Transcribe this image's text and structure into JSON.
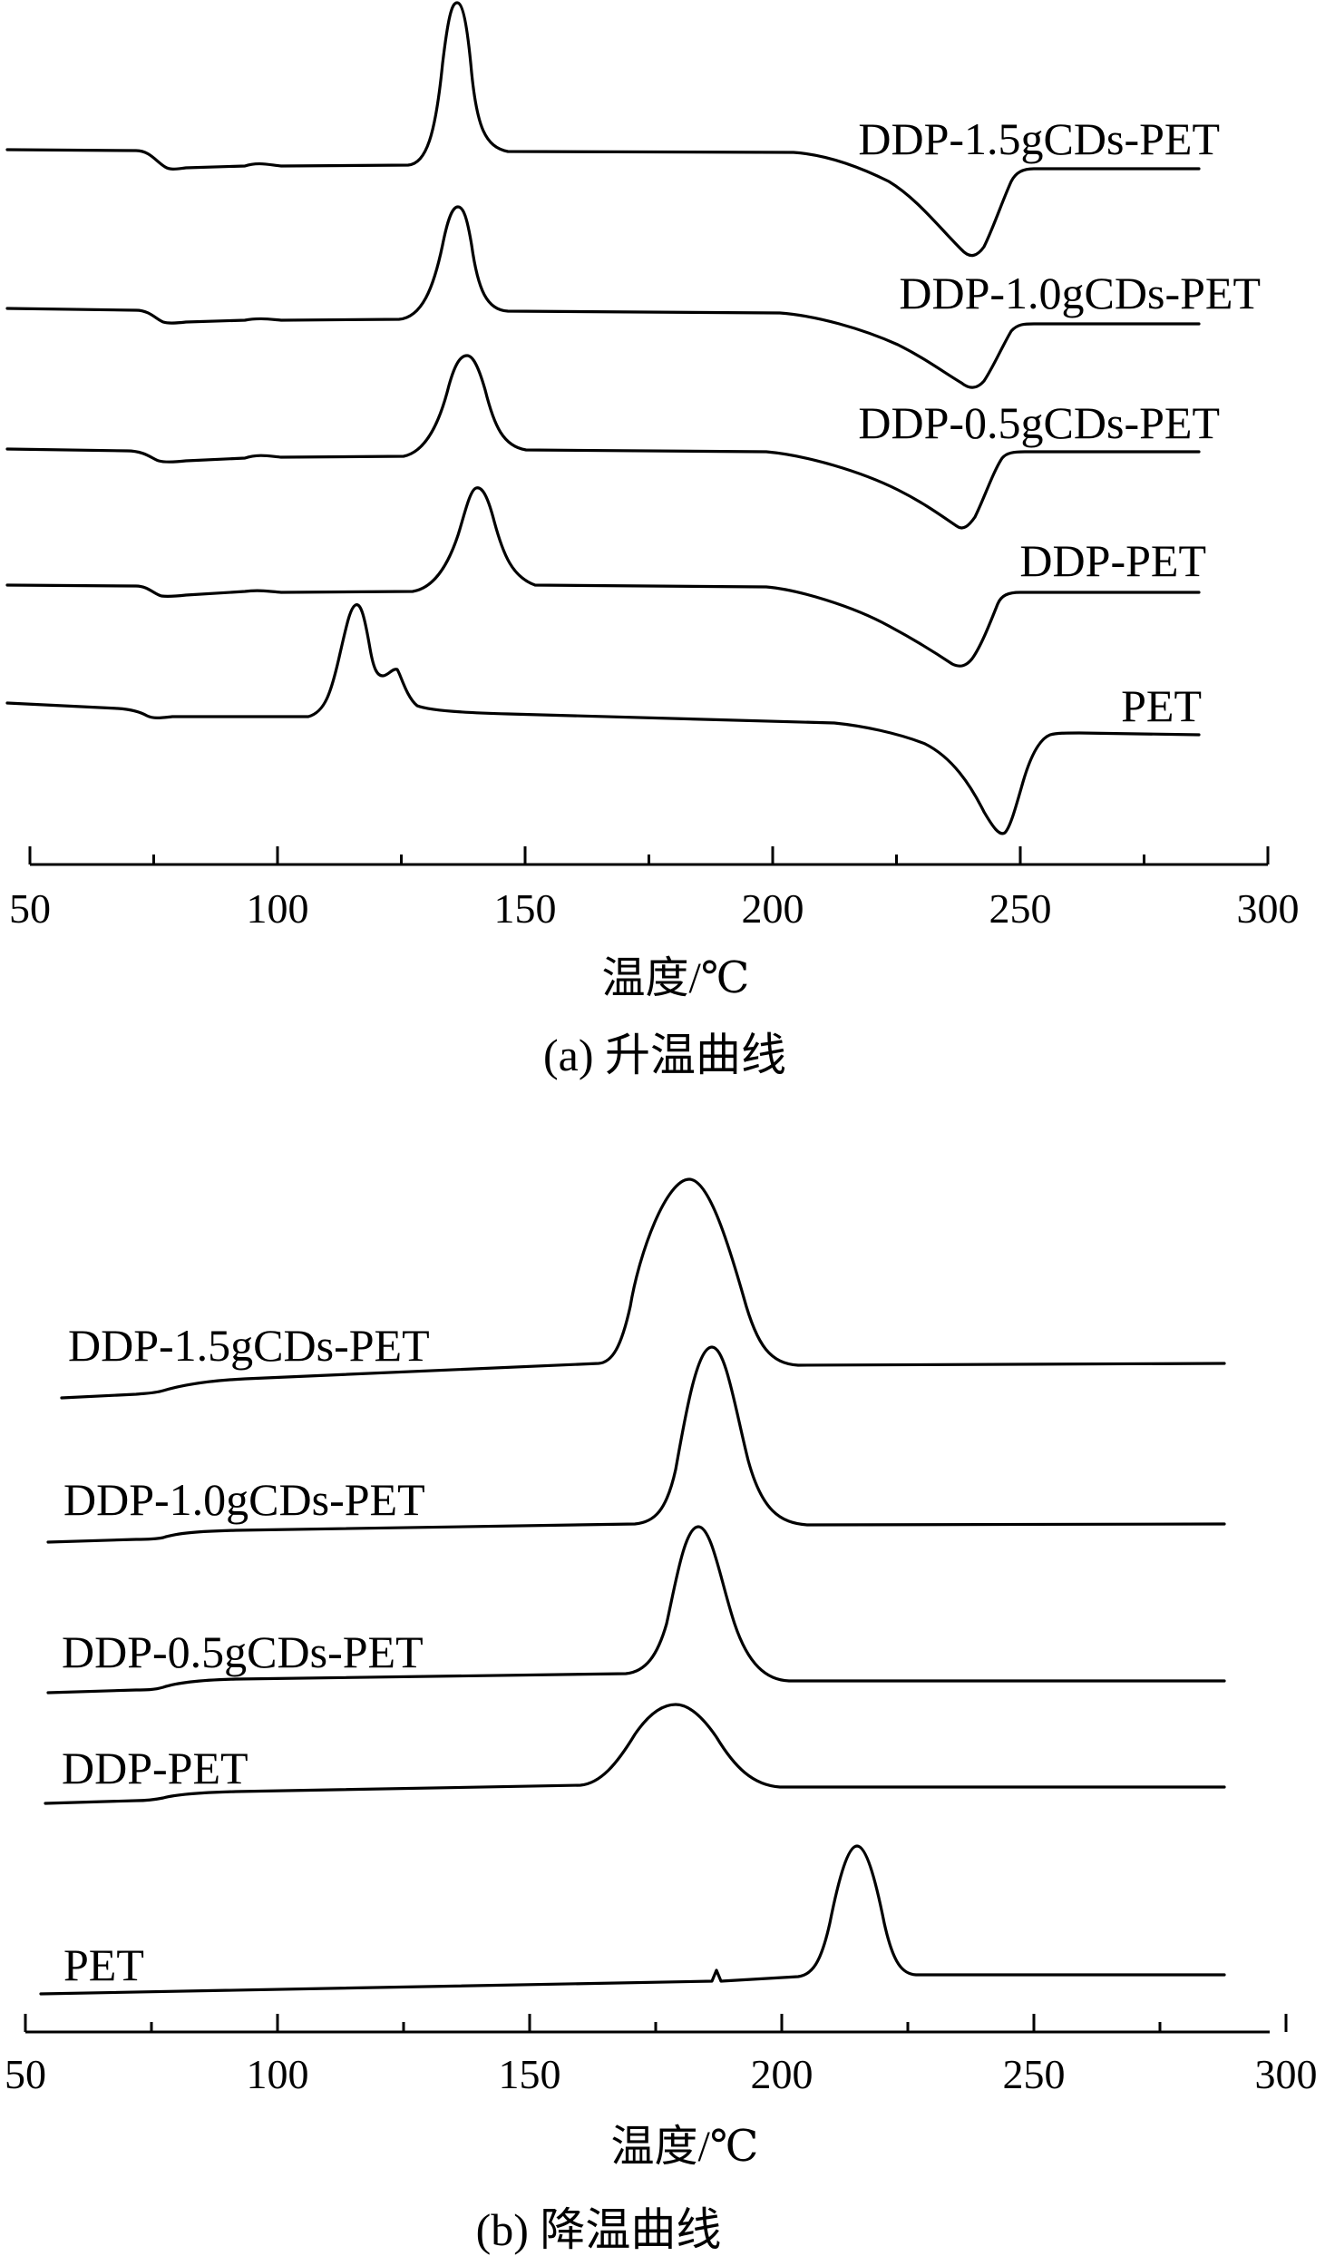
{
  "chart_data": [
    {
      "type": "line",
      "caption": "(a) 升温曲线",
      "xlabel": "温度/℃",
      "ylabel": "",
      "xlim": [
        50,
        300
      ],
      "xticks": [
        50,
        100,
        150,
        200,
        250,
        300
      ],
      "grid": false,
      "series": [
        {
          "name": "DDP-1.5gCDs-PET",
          "transitions": {
            "glass_transition": 75,
            "cold_crystallization_peak": 134,
            "melting_peak": 239
          }
        },
        {
          "name": "DDP-1.0gCDs-PET",
          "transitions": {
            "glass_transition": 75,
            "cold_crystallization_peak": 135,
            "melting_peak": 239
          }
        },
        {
          "name": "DDP-0.5gCDs-PET",
          "transitions": {
            "glass_transition": 75,
            "cold_crystallization_peak": 138,
            "melting_peak": 237
          }
        },
        {
          "name": "DDP-PET",
          "transitions": {
            "glass_transition": 75,
            "cold_crystallization_peak": 142,
            "melting_peak": 238
          }
        },
        {
          "name": "PET",
          "transitions": {
            "glass_transition": 73,
            "cold_crystallization_peak": 118,
            "cold_crystallization_shoulder": 125,
            "melting_peak": 250
          }
        }
      ]
    },
    {
      "type": "line",
      "caption": "(b) 降温曲线",
      "xlabel": "温度/℃",
      "ylabel": "",
      "xlim": [
        50,
        300
      ],
      "xticks": [
        50,
        100,
        150,
        200,
        250,
        300
      ],
      "grid": false,
      "series": [
        {
          "name": "DDP-1.5gCDs-PET",
          "transitions": {
            "crystallization_peak": 179
          }
        },
        {
          "name": "DDP-1.0gCDs-PET",
          "transitions": {
            "crystallization_peak": 184
          }
        },
        {
          "name": "DDP-0.5gCDs-PET",
          "transitions": {
            "crystallization_peak": 180
          }
        },
        {
          "name": "DDP-PET",
          "transitions": {
            "crystallization_peak": 177
          }
        },
        {
          "name": "PET",
          "transitions": {
            "crystallization_peak": 213
          }
        }
      ]
    }
  ]
}
